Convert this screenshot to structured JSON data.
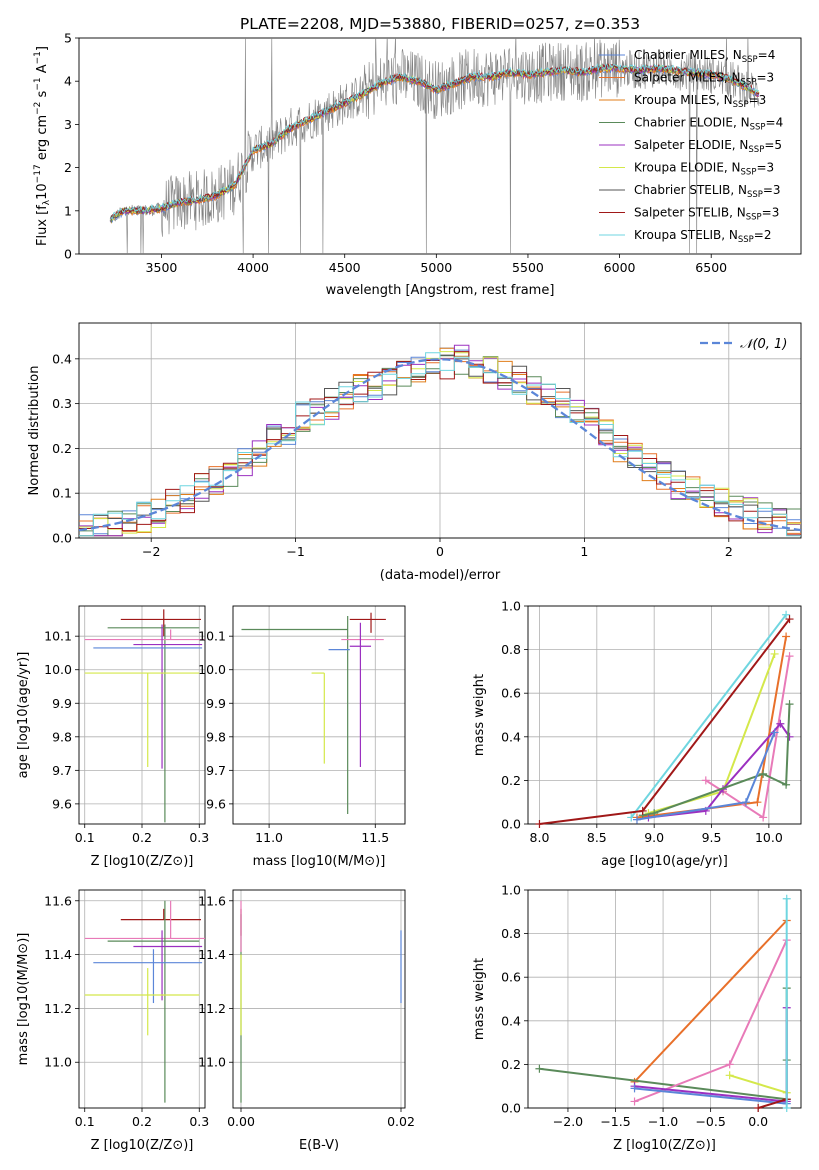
{
  "title": "PLATE=2208, MJD=53880, FIBERID=0257, z=0.353",
  "colors": {
    "chabrier_miles": "#5b86d8",
    "salpeter_miles": "#e8702a",
    "kroupa_miles": "#e07d1a",
    "chabrier_elodie": "#5a8a5a",
    "salpeter_elodie": "#9b30c0",
    "kroupa_elodie": "#d4e84a",
    "chabrier_stelib": "#555555",
    "salpeter_stelib": "#a01818",
    "kroupa_stelib": "#6fd6e0",
    "pink": "#e87ab8",
    "data": "#808080",
    "gaussian": "#5b86d8",
    "grid": "#b0b0b0"
  },
  "chart_data": [
    {
      "id": "spectrum",
      "type": "line",
      "title": "PLATE=2208, MJD=53880, FIBERID=0257, z=0.353",
      "xlabel": "wavelength [Angstrom, rest frame]",
      "ylabel": "Flux [f_λ 10^-17 erg cm^-2 s^-1 A^-1]",
      "xlim": [
        3050,
        6990
      ],
      "ylim": [
        0,
        5
      ],
      "xticks": [
        "3500",
        "4000",
        "4500",
        "5000",
        "5500",
        "6000",
        "6500"
      ],
      "yticks": [
        "0",
        "1",
        "2",
        "3",
        "4",
        "5"
      ],
      "grid": false,
      "legend_position": "right",
      "x": [
        3220,
        3300,
        3400,
        3500,
        3600,
        3700,
        3800,
        3900,
        4000,
        4100,
        4200,
        4300,
        4400,
        4500,
        4600,
        4700,
        4800,
        4900,
        5000,
        5100,
        5200,
        5300,
        5400,
        5500,
        5600,
        5700,
        5800,
        5900,
        6000,
        6100,
        6200,
        6300,
        6400,
        6500,
        6600,
        6700,
        6760
      ],
      "model_flux": [
        0.8,
        1.0,
        1.0,
        1.05,
        1.2,
        1.25,
        1.35,
        1.6,
        2.4,
        2.55,
        2.9,
        3.1,
        3.3,
        3.5,
        3.7,
        3.95,
        4.1,
        4.0,
        3.8,
        3.95,
        4.1,
        4.1,
        4.2,
        4.15,
        4.2,
        4.25,
        4.2,
        4.3,
        4.3,
        4.25,
        4.3,
        4.25,
        4.2,
        4.15,
        4.05,
        3.85,
        3.7
      ],
      "legend": [
        {
          "label": "Chabrier MILES, N",
          "sub": "SSP",
          "tail": "=4",
          "color_key": "chabrier_miles"
        },
        {
          "label": "Salpeter MILES, N",
          "sub": "SSP",
          "tail": "=3",
          "color_key": "salpeter_miles"
        },
        {
          "label": "Kroupa MILES, N",
          "sub": "SSP",
          "tail": "=3",
          "color_key": "kroupa_miles"
        },
        {
          "label": "Chabrier ELODIE, N",
          "sub": "SSP",
          "tail": "=4",
          "color_key": "chabrier_elodie"
        },
        {
          "label": "Salpeter ELODIE, N",
          "sub": "SSP",
          "tail": "=5",
          "color_key": "salpeter_elodie"
        },
        {
          "label": "Kroupa ELODIE, N",
          "sub": "SSP",
          "tail": "=3",
          "color_key": "kroupa_elodie"
        },
        {
          "label": "Chabrier STELIB, N",
          "sub": "SSP",
          "tail": "=3",
          "color_key": "chabrier_stelib"
        },
        {
          "label": "Salpeter STELIB, N",
          "sub": "SSP",
          "tail": "=3",
          "color_key": "salpeter_stelib"
        },
        {
          "label": "Kroupa STELIB, N",
          "sub": "SSP",
          "tail": "=2",
          "color_key": "kroupa_stelib"
        }
      ]
    },
    {
      "id": "residuals",
      "type": "line",
      "xlabel": "(data-model)/error",
      "ylabel": "Normed distribution",
      "xlim": [
        -2.5,
        2.5
      ],
      "ylim": [
        0,
        0.48
      ],
      "xticks": [
        "−2",
        "−1",
        "0",
        "1",
        "2"
      ],
      "yticks": [
        "0.0",
        "0.1",
        "0.2",
        "0.3",
        "0.4"
      ],
      "grid": true,
      "legend_position": "top-right",
      "gaussian_label": "𝒩(0, 1)",
      "bin_centers": [
        -2.45,
        -2.35,
        -2.25,
        -2.15,
        -2.05,
        -1.95,
        -1.85,
        -1.75,
        -1.65,
        -1.55,
        -1.45,
        -1.35,
        -1.25,
        -1.15,
        -1.05,
        -0.95,
        -0.85,
        -0.75,
        -0.65,
        -0.55,
        -0.45,
        -0.35,
        -0.25,
        -0.15,
        -0.05,
        0.05,
        0.15,
        0.25,
        0.35,
        0.45,
        0.55,
        0.65,
        0.75,
        0.85,
        0.95,
        1.05,
        1.15,
        1.25,
        1.35,
        1.45,
        1.55,
        1.65,
        1.75,
        1.85,
        1.95,
        2.05,
        2.15,
        2.25,
        2.35,
        2.45
      ],
      "hist_base": [
        0.02,
        0.025,
        0.03,
        0.035,
        0.045,
        0.055,
        0.075,
        0.09,
        0.11,
        0.13,
        0.15,
        0.17,
        0.19,
        0.22,
        0.24,
        0.27,
        0.28,
        0.3,
        0.32,
        0.33,
        0.34,
        0.35,
        0.37,
        0.37,
        0.38,
        0.39,
        0.4,
        0.39,
        0.38,
        0.36,
        0.35,
        0.33,
        0.31,
        0.3,
        0.28,
        0.26,
        0.23,
        0.2,
        0.18,
        0.16,
        0.14,
        0.12,
        0.11,
        0.09,
        0.08,
        0.065,
        0.055,
        0.045,
        0.035,
        0.03
      ]
    },
    {
      "id": "age-vs-z",
      "type": "scatter",
      "xlabel": "Z [log10(Z/Z⊙)]",
      "ylabel": "age [log10(age/yr)]",
      "xlim": [
        0.09,
        0.31
      ],
      "ylim": [
        9.54,
        10.19
      ],
      "xticks": [
        "0.1",
        "0.2",
        "0.3"
      ],
      "yticks": [
        "9.6",
        "9.7",
        "9.8",
        "9.9",
        "10.0",
        "10.1"
      ],
      "grid": true,
      "points": [
        {
          "x": 0.238,
          "y": 10.15,
          "xerr": [
            0.075,
            0.065
          ],
          "yerr": [
            0.05,
            0.03
          ],
          "color_key": "salpeter_stelib"
        },
        {
          "x": 0.24,
          "y": 10.125,
          "xerr": [
            0.1,
            0.06
          ],
          "yerr": [
            0.58,
            0.01
          ],
          "color_key": "chabrier_elodie"
        },
        {
          "x": 0.25,
          "y": 10.09,
          "xerr": [
            0.15,
            0.06
          ],
          "yerr": [
            0.0,
            0.03
          ],
          "color_key": "pink"
        },
        {
          "x": 0.235,
          "y": 10.075,
          "xerr": [
            0.05,
            0.07
          ],
          "yerr": [
            0.37,
            0.06
          ],
          "color_key": "salpeter_elodie"
        },
        {
          "x": 0.22,
          "y": 10.065,
          "xerr": [
            0.105,
            0.085
          ],
          "yerr": [
            0.0,
            0.0
          ],
          "color_key": "chabrier_miles"
        },
        {
          "x": 0.21,
          "y": 9.99,
          "xerr": [
            0.11,
            0.09
          ],
          "yerr": [
            0.28,
            0.0
          ],
          "color_key": "kroupa_elodie"
        }
      ]
    },
    {
      "id": "age-vs-mass",
      "type": "scatter",
      "xlabel": "mass [log10(M/M⊙)]",
      "ylabel": "",
      "xlim": [
        10.83,
        11.64
      ],
      "ylim": [
        9.54,
        10.19
      ],
      "xticks": [
        "11.0",
        "11.5"
      ],
      "yticks": [
        "9.6",
        "9.7",
        "9.8",
        "9.9",
        "10.0",
        "10.1"
      ],
      "grid": true,
      "points": [
        {
          "x": 11.48,
          "y": 10.15,
          "xerr": [
            0.1,
            0.07
          ],
          "yerr": [
            0.04,
            0.02
          ],
          "color_key": "salpeter_stelib"
        },
        {
          "x": 11.37,
          "y": 10.12,
          "xerr": [
            0.5,
            0.0
          ],
          "yerr": [
            0.55,
            0.04
          ],
          "color_key": "chabrier_elodie"
        },
        {
          "x": 11.44,
          "y": 10.09,
          "xerr": [
            0.1,
            0.1
          ],
          "yerr": [
            0.0,
            0.0
          ],
          "color_key": "pink"
        },
        {
          "x": 11.43,
          "y": 10.07,
          "xerr": [
            0.05,
            0.05
          ],
          "yerr": [
            0.36,
            0.07
          ],
          "color_key": "salpeter_elodie"
        },
        {
          "x": 11.38,
          "y": 10.06,
          "xerr": [
            0.1,
            0.0
          ],
          "yerr": [
            0.0,
            0.0
          ],
          "color_key": "chabrier_miles"
        },
        {
          "x": 11.26,
          "y": 9.99,
          "xerr": [
            0.06,
            0.0
          ],
          "yerr": [
            0.27,
            0.0
          ],
          "color_key": "kroupa_elodie"
        }
      ]
    },
    {
      "id": "mass-weight-vs-age",
      "type": "line",
      "xlabel": "age [log10(age/yr)]",
      "ylabel": "mass weight",
      "xlim": [
        7.9,
        10.28
      ],
      "ylim": [
        0,
        1
      ],
      "xticks": [
        "8.0",
        "8.5",
        "9.0",
        "9.5",
        "10.0"
      ],
      "yticks": [
        "0.0",
        "0.2",
        "0.4",
        "0.6",
        "0.8",
        "1.0"
      ],
      "grid": true,
      "series": [
        {
          "color_key": "kroupa_stelib",
          "x": [
            8.8,
            10.15
          ],
          "y": [
            0.03,
            0.96
          ]
        },
        {
          "color_key": "salpeter_miles",
          "x": [
            8.85,
            9.9,
            10.15
          ],
          "y": [
            0.03,
            0.1,
            0.86
          ]
        },
        {
          "color_key": "kroupa_elodie",
          "x": [
            8.95,
            9.6,
            10.05
          ],
          "y": [
            0.05,
            0.15,
            0.78
          ]
        },
        {
          "color_key": "pink",
          "x": [
            9.45,
            9.6,
            9.95,
            10.18
          ],
          "y": [
            0.2,
            0.15,
            0.03,
            0.77
          ]
        },
        {
          "color_key": "salpeter_elodie",
          "x": [
            8.95,
            9.45,
            9.6,
            10.1,
            10.18
          ],
          "y": [
            0.03,
            0.06,
            0.16,
            0.46,
            0.4
          ]
        },
        {
          "color_key": "chabrier_elodie",
          "x": [
            8.9,
            9.0,
            9.95,
            10.15,
            10.18
          ],
          "y": [
            0.04,
            0.05,
            0.23,
            0.18,
            0.55
          ]
        },
        {
          "color_key": "chabrier_miles",
          "x": [
            8.85,
            9.8,
            10.05
          ],
          "y": [
            0.02,
            0.1,
            0.42
          ]
        },
        {
          "color_key": "salpeter_stelib",
          "x": [
            8.0,
            8.9,
            10.18
          ],
          "y": [
            0.0,
            0.06,
            0.94
          ]
        }
      ]
    },
    {
      "id": "mass-vs-z",
      "type": "scatter",
      "xlabel": "Z [log10(Z/Z⊙)]",
      "ylabel": "mass [log10(M/M⊙)]",
      "xlim": [
        0.09,
        0.31
      ],
      "ylim": [
        10.83,
        11.64
      ],
      "xticks": [
        "0.1",
        "0.2",
        "0.3"
      ],
      "yticks": [
        "11.0",
        "11.2",
        "11.4",
        "11.6"
      ],
      "grid": true,
      "points": [
        {
          "x": 0.238,
          "y": 11.53,
          "xerr": [
            0.075,
            0.065
          ],
          "yerr": [
            0.0,
            0.04
          ],
          "color_key": "salpeter_stelib"
        },
        {
          "x": 0.25,
          "y": 11.46,
          "xerr": [
            0.15,
            0.06
          ],
          "yerr": [
            0.0,
            0.14
          ],
          "color_key": "pink"
        },
        {
          "x": 0.24,
          "y": 11.45,
          "xerr": [
            0.1,
            0.06
          ],
          "yerr": [
            0.6,
            0.15
          ],
          "color_key": "chabrier_elodie"
        },
        {
          "x": 0.235,
          "y": 11.43,
          "xerr": [
            0.05,
            0.07
          ],
          "yerr": [
            0.2,
            0.06
          ],
          "color_key": "salpeter_elodie"
        },
        {
          "x": 0.22,
          "y": 11.37,
          "xerr": [
            0.105,
            0.085
          ],
          "yerr": [
            0.15,
            0.05
          ],
          "color_key": "chabrier_miles"
        },
        {
          "x": 0.21,
          "y": 11.25,
          "xerr": [
            0.11,
            0.09
          ],
          "yerr": [
            0.15,
            0.1
          ],
          "color_key": "kroupa_elodie"
        }
      ]
    },
    {
      "id": "mass-vs-ebv",
      "type": "scatter",
      "xlabel": "E(B-V)",
      "ylabel": "",
      "xlim": [
        -0.001,
        0.0205
      ],
      "ylim": [
        10.83,
        11.64
      ],
      "xticks": [
        "0.00",
        "0.02"
      ],
      "yticks": [
        "11.0",
        "11.2",
        "11.4",
        "11.6"
      ],
      "grid": true,
      "points": [
        {
          "x": 0.0,
          "y": 11.53,
          "xerr": [
            0,
            0
          ],
          "yerr": [
            0.06,
            0.04
          ],
          "color_key": "salpeter_stelib"
        },
        {
          "x": 0.0,
          "y": 11.45,
          "xerr": [
            0,
            0
          ],
          "yerr": [
            0.6,
            0.1
          ],
          "color_key": "chabrier_elodie"
        },
        {
          "x": 0.0,
          "y": 11.46,
          "xerr": [
            0,
            0
          ],
          "yerr": [
            0.05,
            0.14
          ],
          "color_key": "pink"
        },
        {
          "x": 0.0,
          "y": 11.3,
          "xerr": [
            0,
            0
          ],
          "yerr": [
            0.2,
            0.1
          ],
          "color_key": "kroupa_elodie"
        },
        {
          "x": 0.02,
          "y": 11.37,
          "xerr": [
            0,
            0
          ],
          "yerr": [
            0.15,
            0.12
          ],
          "color_key": "chabrier_miles"
        }
      ]
    },
    {
      "id": "mass-weight-vs-z",
      "type": "line",
      "xlabel": "Z [log10(Z/Z⊙)]",
      "ylabel": "mass weight",
      "xlim": [
        -2.42,
        0.45
      ],
      "ylim": [
        0,
        1
      ],
      "xticks": [
        "−2.0",
        "−1.5",
        "−1.0",
        "−0.5",
        "0.0"
      ],
      "yticks": [
        "0.0",
        "0.2",
        "0.4",
        "0.6",
        "0.8",
        "1.0"
      ],
      "grid": true,
      "series": [
        {
          "color_key": "salpeter_miles",
          "x": [
            -1.3,
            0.3
          ],
          "y": [
            0.12,
            0.86
          ]
        },
        {
          "color_key": "chabrier_elodie",
          "x": [
            -2.3,
            0.3,
            0.3,
            0.3
          ],
          "y": [
            0.18,
            0.04,
            0.55,
            0.22
          ]
        },
        {
          "color_key": "pink",
          "x": [
            -1.3,
            -0.3,
            0.3
          ],
          "y": [
            0.03,
            0.2,
            0.77
          ]
        },
        {
          "color_key": "kroupa_elodie",
          "x": [
            -0.3,
            0.3
          ],
          "y": [
            0.15,
            0.07
          ]
        },
        {
          "color_key": "salpeter_elodie",
          "x": [
            -1.3,
            0.3,
            0.3
          ],
          "y": [
            0.1,
            0.03,
            0.46
          ]
        },
        {
          "color_key": "chabrier_miles",
          "x": [
            -1.3,
            0.3
          ],
          "y": [
            0.09,
            0.02
          ]
        },
        {
          "color_key": "salpeter_stelib",
          "x": [
            0.0,
            0.3
          ],
          "y": [
            0.0,
            0.04
          ]
        },
        {
          "color_key": "kroupa_stelib",
          "x": [
            0.3,
            0.3
          ],
          "y": [
            0.0,
            0.96
          ]
        }
      ]
    }
  ]
}
